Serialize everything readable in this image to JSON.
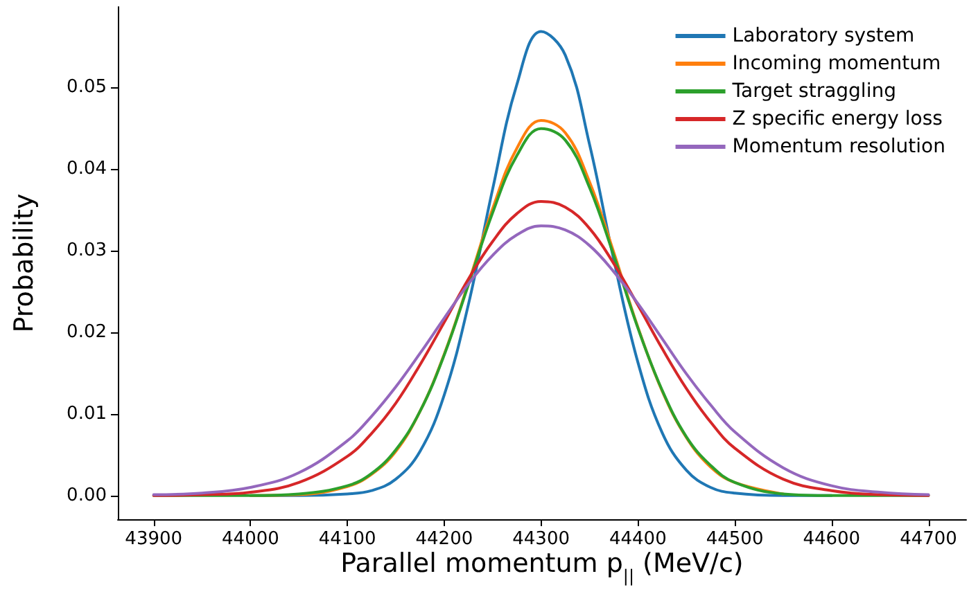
{
  "chart_data": {
    "type": "line",
    "xlabel": "Parallel momentum p$_{||}$ (MeV/c)",
    "ylabel": "Probability",
    "x": [
      43900,
      43950,
      44000,
      44050,
      44100,
      44125,
      44150,
      44175,
      44200,
      44225,
      44250,
      44275,
      44300,
      44325,
      44350,
      44375,
      44400,
      44425,
      44450,
      44475,
      44500,
      44550,
      44600,
      44650,
      44700
    ],
    "series": [
      {
        "name": "Laboratory system",
        "color": "#1f77b4",
        "values": [
          null,
          null,
          0,
          0,
          0.0002,
          0.0006,
          0.002,
          0.0054,
          0.0123,
          0.0234,
          0.0375,
          0.0503,
          0.0568,
          0.0539,
          0.043,
          0.0289,
          0.0163,
          0.0077,
          0.0031,
          0.001,
          0.0003,
          0,
          0,
          null,
          null
        ]
      },
      {
        "name": "Incoming momentum",
        "color": "#ff7f0e",
        "values": [
          null,
          null,
          0,
          0.0001,
          0.0011,
          0.0026,
          0.0054,
          0.0103,
          0.0173,
          0.026,
          0.0351,
          0.0425,
          0.0459,
          0.0444,
          0.0384,
          0.0298,
          0.0206,
          0.0128,
          0.0071,
          0.0035,
          0.0016,
          0.0002,
          null,
          null,
          null
        ]
      },
      {
        "name": "Target straggling",
        "color": "#2ca02c",
        "values": [
          0,
          0,
          0,
          0.0002,
          0.0012,
          0.0027,
          0.0056,
          0.0103,
          0.0172,
          0.0258,
          0.0346,
          0.0416,
          0.0449,
          0.0435,
          0.0377,
          0.0294,
          0.0205,
          0.0129,
          0.0072,
          0.0037,
          0.0016,
          0.0002,
          0,
          0,
          0
        ]
      },
      {
        "name": "Z specific energy loss",
        "color": "#d62728",
        "values": [
          0,
          0.0001,
          0.0004,
          0.0016,
          0.0048,
          0.0076,
          0.0113,
          0.016,
          0.0212,
          0.0265,
          0.0311,
          0.0345,
          0.036,
          0.0353,
          0.0327,
          0.0284,
          0.0233,
          0.018,
          0.0131,
          0.009,
          0.0058,
          0.002,
          0.0006,
          0.0001,
          0
        ]
      },
      {
        "name": "Momentum resolution",
        "color": "#9467bd",
        "values": [
          0.0001,
          0.0003,
          0.001,
          0.0028,
          0.0067,
          0.0097,
          0.0133,
          0.0174,
          0.0217,
          0.0259,
          0.0294,
          0.0319,
          0.033,
          0.0325,
          0.0306,
          0.0274,
          0.0235,
          0.0192,
          0.0149,
          0.0111,
          0.0078,
          0.0034,
          0.0012,
          0.0004,
          0.0001
        ]
      }
    ],
    "xlim": [
      43863,
      44739
    ],
    "ylim": [
      -0.0029,
      0.0598
    ],
    "xticks": [
      43900,
      44000,
      44100,
      44200,
      44300,
      44400,
      44500,
      44600,
      44700
    ],
    "yticks": [
      {
        "value": 0,
        "label": "0.00"
      },
      {
        "value": 0.01,
        "label": "0.01"
      },
      {
        "value": 0.02,
        "label": "0.02"
      },
      {
        "value": 0.03,
        "label": "0.03"
      },
      {
        "value": 0.04,
        "label": "0.04"
      },
      {
        "value": 0.05,
        "label": "0.05"
      }
    ],
    "grid": false,
    "legend": "top right",
    "marker": "none",
    "line_style": "solid"
  }
}
